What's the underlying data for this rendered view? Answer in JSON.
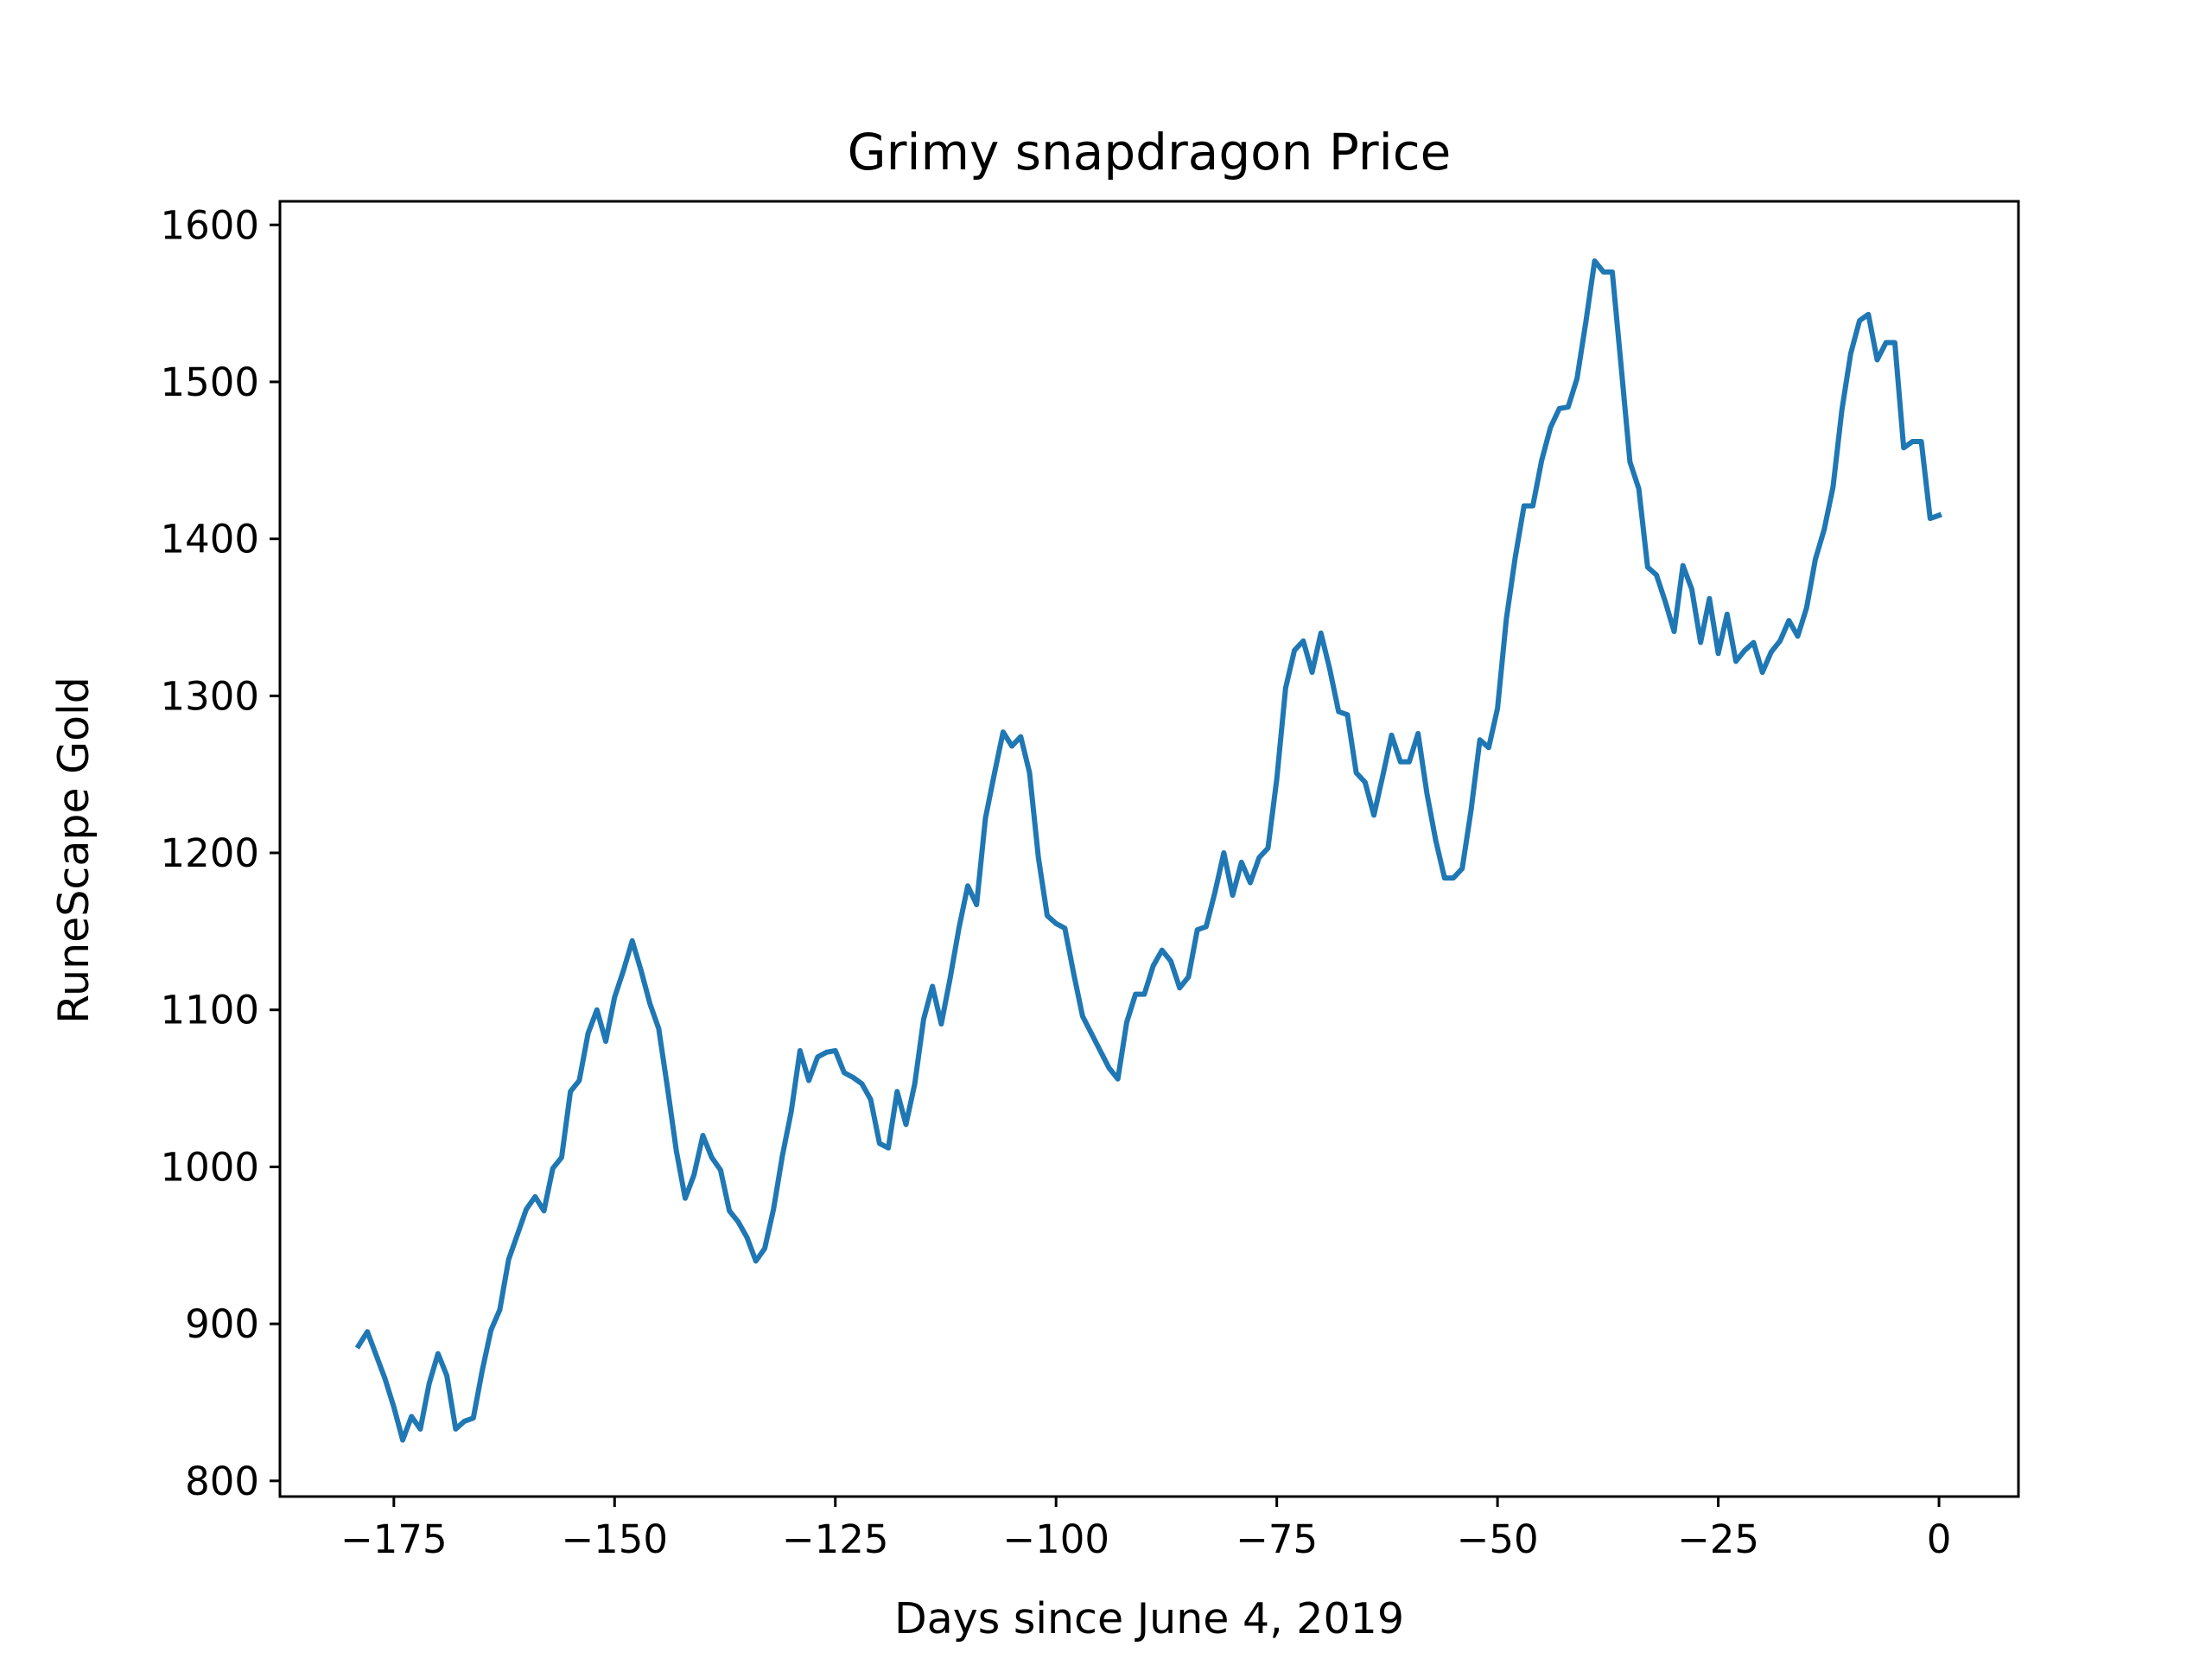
{
  "chart_data": {
    "type": "line",
    "title": "Grimy snapdragon Price",
    "xlabel": "Days since June 4, 2019",
    "ylabel": "RuneScape Gold",
    "xlim": [
      -187.9,
      9.0
    ],
    "ylim": [
      790,
      1615
    ],
    "xticks": [
      -175,
      -150,
      -125,
      -100,
      -75,
      -50,
      -25,
      0
    ],
    "xtick_labels": [
      "−175",
      "−150",
      "−125",
      "−100",
      "−75",
      "−50",
      "−25",
      "0"
    ],
    "yticks": [
      800,
      900,
      1000,
      1100,
      1200,
      1300,
      1400,
      1500,
      1600
    ],
    "ytick_labels": [
      "800",
      "900",
      "1000",
      "1100",
      "1200",
      "1300",
      "1400",
      "1500",
      "1600"
    ],
    "grid": false,
    "line_color": "#1f77b4",
    "series": [
      {
        "x": [
          -179,
          -178,
          -177,
          -176,
          -175,
          -174,
          -173,
          -172,
          -171,
          -170,
          -169,
          -168,
          -167,
          -166,
          -165,
          -164,
          -163,
          -162,
          -161,
          -160,
          -159,
          -158,
          -157,
          -156,
          -155,
          -154,
          -153,
          -152,
          -151,
          -150,
          -149,
          -148,
          -147,
          -146,
          -145,
          -144,
          -143,
          -142,
          -141,
          -140,
          -139,
          -138,
          -137,
          -136,
          -135,
          -134,
          -133,
          -132,
          -131,
          -130,
          -129,
          -128,
          -127,
          -126,
          -125,
          -124,
          -123,
          -122,
          -121,
          -120,
          -119,
          -118,
          -117,
          -116,
          -115,
          -114,
          -113,
          -112,
          -111,
          -110,
          -109,
          -108,
          -107,
          -106,
          -105,
          -104,
          -103,
          -102,
          -101,
          -100,
          -99,
          -98,
          -97,
          -96,
          -95,
          -94,
          -93,
          -92,
          -91,
          -90,
          -89,
          -88,
          -87,
          -86,
          -85,
          -84,
          -83,
          -82,
          -81,
          -80,
          -79,
          -78,
          -77,
          -76,
          -75,
          -74,
          -73,
          -72,
          -71,
          -70,
          -69,
          -68,
          -67,
          -66,
          -65,
          -64,
          -63,
          -62,
          -61,
          -60,
          -59,
          -58,
          -57,
          -56,
          -55,
          -54,
          -53,
          -52,
          -51,
          -50,
          -49,
          -48,
          -47,
          -46,
          -45,
          -44,
          -43,
          -42,
          -41,
          -40,
          -39,
          -38,
          -37,
          -36,
          -35,
          -34,
          -33,
          -32,
          -31,
          -30,
          -29,
          -28,
          -27,
          -26,
          -25,
          -24,
          -23,
          -22,
          -21,
          -20,
          -19,
          -18,
          -17,
          -16,
          -15,
          -14,
          -13,
          -12,
          -11,
          -10,
          -9,
          -8,
          -7,
          -6,
          -5,
          -4,
          -3,
          -2,
          -1,
          0
        ],
        "y": [
          886,
          895,
          880,
          865,
          847,
          826,
          841,
          833,
          862,
          881,
          867,
          833,
          838,
          840,
          870,
          896,
          909,
          941,
          957,
          973,
          981,
          972,
          999,
          1006,
          1048,
          1055,
          1085,
          1100,
          1080,
          1108,
          1125,
          1144,
          1125,
          1104,
          1088,
          1050,
          1010,
          980,
          995,
          1020,
          1006,
          998,
          972,
          965,
          955,
          940,
          948,
          973,
          1007,
          1035,
          1074,
          1055,
          1070,
          1073,
          1074,
          1060,
          1057,
          1053,
          1043,
          1015,
          1012,
          1048,
          1027,
          1053,
          1094,
          1115,
          1091,
          1120,
          1152,
          1179,
          1167,
          1222,
          1250,
          1277,
          1268,
          1274,
          1251,
          1197,
          1160,
          1155,
          1152,
          1123,
          1096,
          1085,
          1074,
          1063,
          1056,
          1092,
          1110,
          1110,
          1128,
          1138,
          1131,
          1114,
          1121,
          1151,
          1153,
          1175,
          1200,
          1173,
          1194,
          1181,
          1197,
          1203,
          1247,
          1305,
          1329,
          1335,
          1315,
          1340,
          1317,
          1290,
          1288,
          1251,
          1245,
          1224,
          1249,
          1275,
          1258,
          1258,
          1276,
          1238,
          1208,
          1184,
          1184,
          1190,
          1227,
          1272,
          1267,
          1292,
          1349,
          1388,
          1421,
          1421,
          1450,
          1471,
          1483,
          1484,
          1502,
          1538,
          1577,
          1570,
          1570,
          1510,
          1449,
          1432,
          1382,
          1377,
          1360,
          1341,
          1383,
          1368,
          1334,
          1362,
          1327,
          1352,
          1322,
          1329,
          1334,
          1315,
          1328,
          1335,
          1348,
          1338,
          1356,
          1387,
          1406,
          1433,
          1482,
          1518,
          1539,
          1543,
          1514,
          1525,
          1525,
          1458,
          1462,
          1462,
          1413,
          1415
        ]
      }
    ]
  }
}
